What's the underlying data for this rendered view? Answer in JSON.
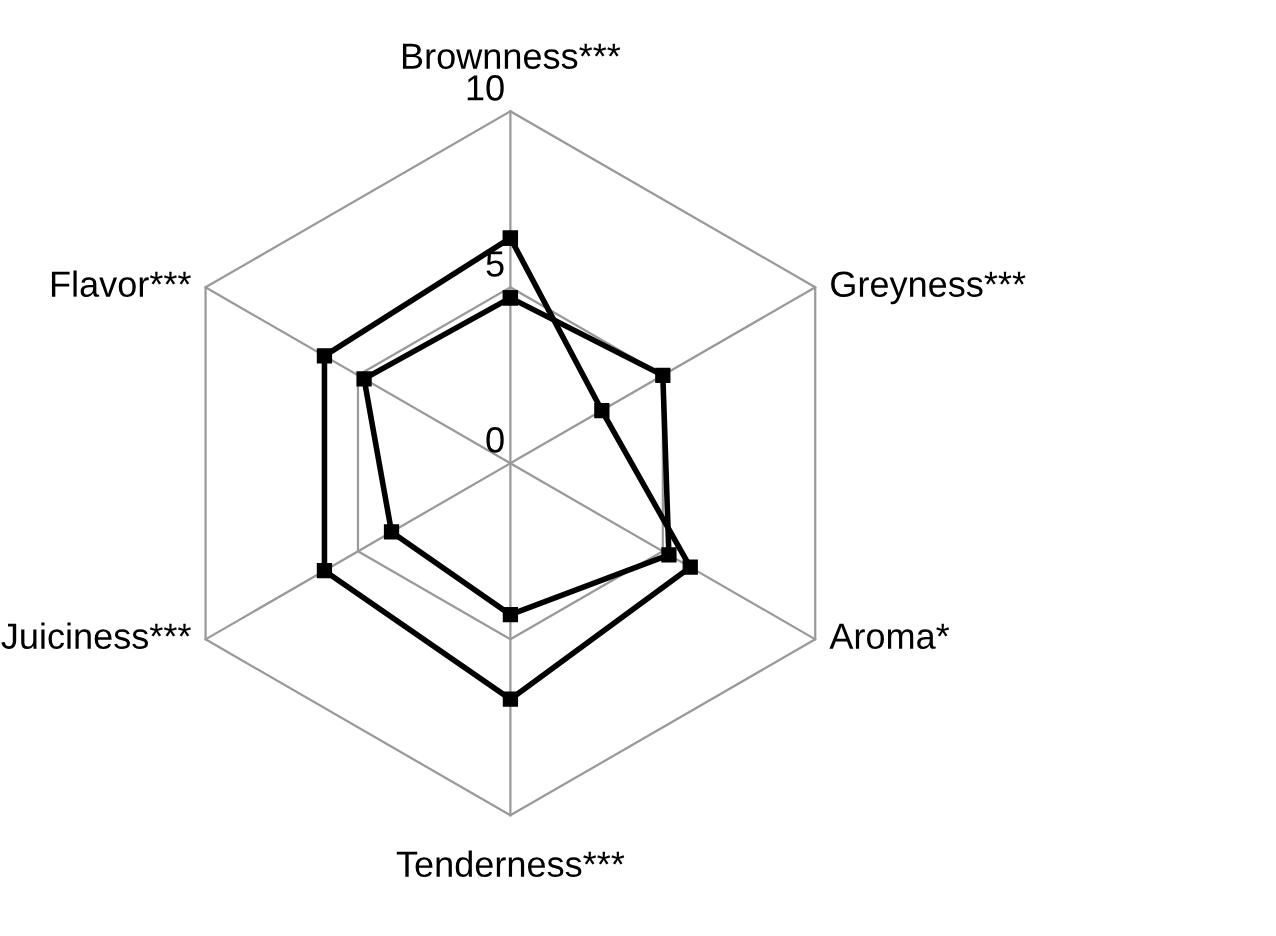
{
  "chart_data": {
    "type": "radar",
    "categories": [
      "Brownness***",
      "Greyness***",
      "Aroma*",
      "Tenderness***",
      "Juiciness***",
      "Flavor***"
    ],
    "series": [
      {
        "color": "#000000",
        "values": [
          6.4,
          3.0,
          5.9,
          6.7,
          6.1,
          6.1
        ]
      },
      {
        "color": "#000000",
        "values": [
          4.7,
          5.0,
          5.2,
          4.3,
          3.9,
          4.8
        ]
      }
    ],
    "ylim": [
      0,
      10
    ],
    "yticks": [
      0,
      5,
      10
    ],
    "grid": true,
    "marker": "square",
    "line_style": "solid",
    "legend": false
  }
}
